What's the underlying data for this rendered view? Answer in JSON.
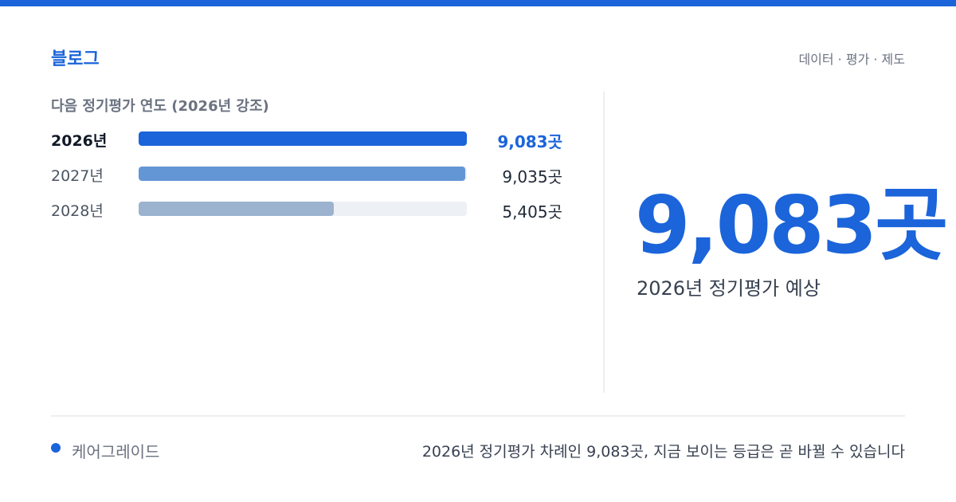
{
  "header": {
    "brand": "블로그",
    "tagline": "데이터 · 평가 · 제도"
  },
  "colors": {
    "accent": "#1b64da",
    "bar_2026": "#1b64da",
    "bar_2027": "#6396d4",
    "bar_2028": "#9bb3cf",
    "track": "#edf0f4"
  },
  "chart_data": {
    "type": "bar",
    "orientation": "horizontal",
    "title": "다음 정기평가 연도 (2026년 강조)",
    "categories": [
      "2026년",
      "2027년",
      "2028년"
    ],
    "values": [
      9083,
      9035,
      5405
    ],
    "value_labels": [
      "9,083곳",
      "9,035곳",
      "5,405곳"
    ],
    "highlight_index": 0,
    "xlim": [
      0,
      9083
    ],
    "grid": false,
    "legend": "none"
  },
  "summary": {
    "big_number": "9,083곳",
    "caption": "2026년 정기평가 예상"
  },
  "footer": {
    "source": "케어그레이드",
    "note": "2026년 정기평가 차례인 9,083곳, 지금 보이는 등급은 곧 바뀔 수 있습니다"
  }
}
